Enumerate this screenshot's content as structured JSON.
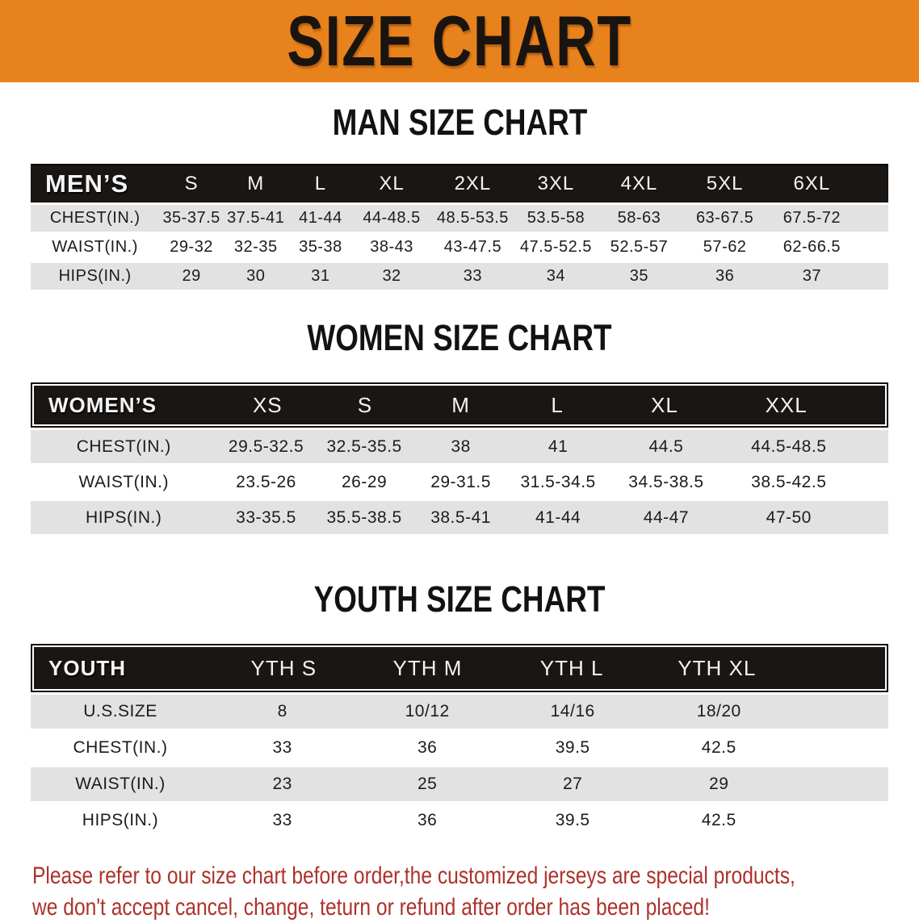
{
  "banner": {
    "title": "SIZE CHART"
  },
  "colors": {
    "banner_orange": "#E8821C",
    "header_black": "#1A1613",
    "row_gray": "#E2E2E2",
    "disclaimer_red": "#AC322B"
  },
  "sections": {
    "men": {
      "heading": "MAN SIZE CHART",
      "table": {
        "header": [
          "MEN’S",
          "S",
          "M",
          "L",
          "XL",
          "2XL",
          "3XL",
          "4XL",
          "5XL",
          "6XL"
        ],
        "rows": [
          {
            "label": "CHEST(IN.)",
            "values": [
              "35-37.5",
              "37.5-41",
              "41-44",
              "44-48.5",
              "48.5-53.5",
              "53.5-58",
              "58-63",
              "63-67.5",
              "67.5-72"
            ]
          },
          {
            "label": "WAIST(IN.)",
            "values": [
              "29-32",
              "32-35",
              "35-38",
              "38-43",
              "43-47.5",
              "47.5-52.5",
              "52.5-57",
              "57-62",
              "62-66.5"
            ]
          },
          {
            "label": "HIPS(IN.)",
            "values": [
              "29",
              "30",
              "31",
              "32",
              "33",
              "34",
              "35",
              "36",
              "37"
            ]
          }
        ]
      }
    },
    "women": {
      "heading": "WOMEN SIZE CHART",
      "table": {
        "header": [
          "WOMEN’S",
          "XS",
          "S",
          "M",
          "L",
          "XL",
          "XXL"
        ],
        "rows": [
          {
            "label": "CHEST(IN.)",
            "values": [
              "29.5-32.5",
              "32.5-35.5",
              "38",
              "41",
              "44.5",
              "44.5-48.5"
            ]
          },
          {
            "label": "WAIST(IN.)",
            "values": [
              "23.5-26",
              "26-29",
              "29-31.5",
              "31.5-34.5",
              "34.5-38.5",
              "38.5-42.5"
            ]
          },
          {
            "label": "HIPS(IN.)",
            "values": [
              "33-35.5",
              "35.5-38.5",
              "38.5-41",
              "41-44",
              "44-47",
              "47-50"
            ]
          }
        ]
      }
    },
    "youth": {
      "heading": "YOUTH SIZE CHART",
      "table": {
        "header": [
          "YOUTH",
          "YTH S",
          "YTH M",
          "YTH L",
          "YTH XL"
        ],
        "rows": [
          {
            "label": "U.S.SIZE",
            "values": [
              "8",
              "10/12",
              "14/16",
              "18/20"
            ]
          },
          {
            "label": "CHEST(IN.)",
            "values": [
              "33",
              "36",
              "39.5",
              "42.5"
            ]
          },
          {
            "label": "WAIST(IN.)",
            "values": [
              "23",
              "25",
              "27",
              "29"
            ]
          },
          {
            "label": "HIPS(IN.)",
            "values": [
              "33",
              "36",
              "39.5",
              "42.5"
            ]
          }
        ]
      }
    }
  },
  "disclaimer": {
    "line1": "Please refer to our size chart before order,the customized jerseys are special products,",
    "line2": "we don't accept cancel, change, teturn or refund after order has been placed!"
  }
}
